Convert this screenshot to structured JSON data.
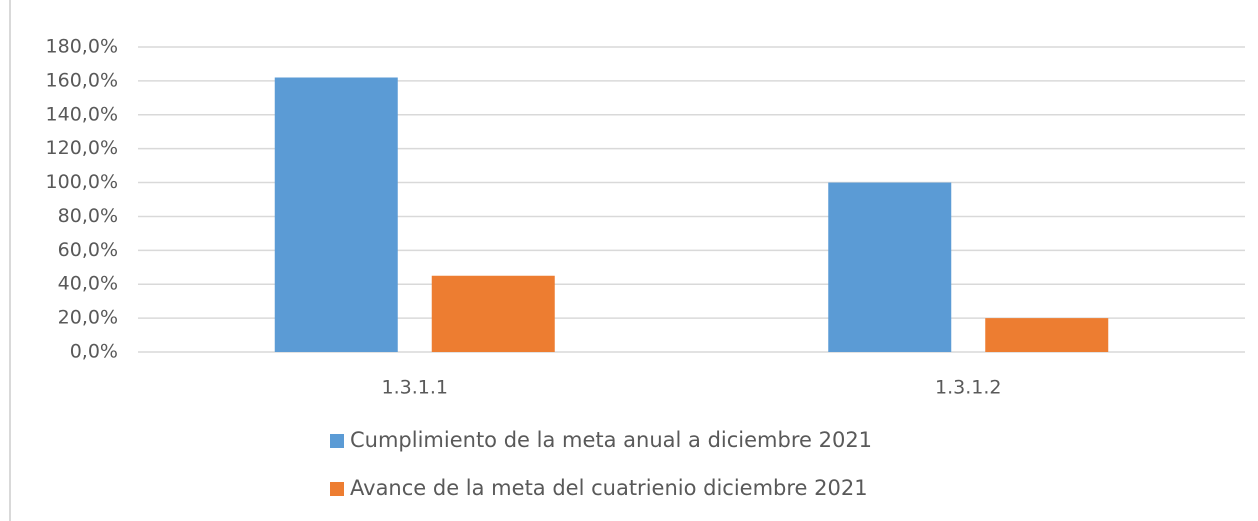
{
  "chart_data": {
    "type": "bar",
    "categories": [
      "1.3.1.1",
      "1.3.1.2"
    ],
    "series": [
      {
        "name": "Cumplimiento de la meta anual a diciembre 2021",
        "color": "#5b9bd5",
        "values": [
          162,
          100
        ]
      },
      {
        "name": "Avance de la meta del cuatrienio diciembre 2021",
        "color": "#ed7d31",
        "values": [
          45,
          20
        ]
      }
    ],
    "ylim": [
      0,
      180
    ],
    "yticks": [
      {
        "value": 0,
        "label": "0,0%"
      },
      {
        "value": 20,
        "label": "20,0%"
      },
      {
        "value": 40,
        "label": "40,0%"
      },
      {
        "value": 60,
        "label": "60,0%"
      },
      {
        "value": 80,
        "label": "80,0%"
      },
      {
        "value": 100,
        "label": "100,0%"
      },
      {
        "value": 120,
        "label": "120,0%"
      },
      {
        "value": 140,
        "label": "140,0%"
      },
      {
        "value": 160,
        "label": "160,0%"
      },
      {
        "value": 180,
        "label": "180,0%"
      }
    ],
    "grid": true,
    "legend": "bottom"
  }
}
